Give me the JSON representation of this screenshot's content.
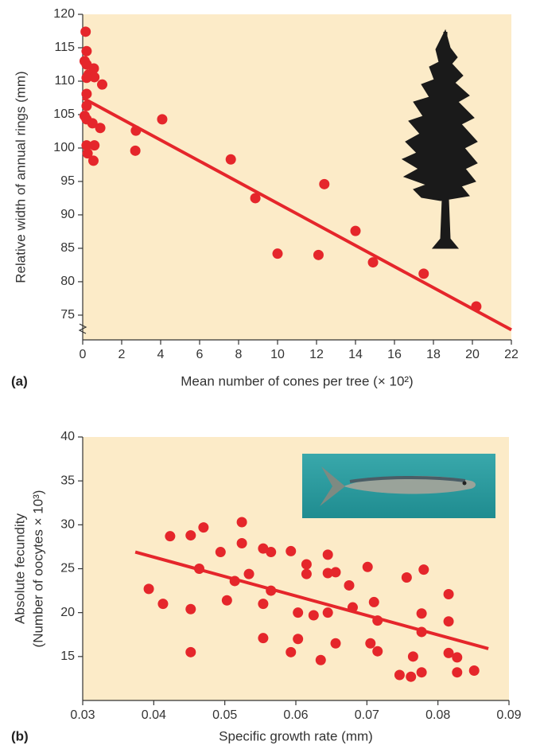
{
  "chart_data": [
    {
      "type": "scatter",
      "panel_label": "(a)",
      "xlabel": "Mean number of cones per tree (× 10²)",
      "ylabel": [
        "Relative width of annual rings (mm)"
      ],
      "background": "#fcebc8",
      "xlim": [
        0,
        22
      ],
      "ylim": [
        71.3,
        120
      ],
      "xticks": [
        0,
        2,
        4,
        6,
        8,
        10,
        12,
        14,
        16,
        18,
        20,
        22
      ],
      "yticks": [
        75,
        80,
        85,
        90,
        95,
        100,
        105,
        110,
        115,
        120
      ],
      "series": [
        {
          "color": "#e5262b",
          "x": [
            0.15,
            0.2,
            0.1,
            0.2,
            0.57,
            0.3,
            0.6,
            0.2,
            1.0,
            0.2,
            0.2,
            0.1,
            0.2,
            0.5,
            0.9,
            2.73,
            4.08,
            0.2,
            0.6,
            0.25,
            2.7,
            0.55,
            7.6,
            8.86,
            10.0,
            12.1,
            12.4,
            14.0,
            14.9,
            17.5,
            20.2
          ],
          "y": [
            117.4,
            114.5,
            113.0,
            112.5,
            111.9,
            111.0,
            110.6,
            110.5,
            109.5,
            108.1,
            106.3,
            104.8,
            104.3,
            103.7,
            103.0,
            102.6,
            104.3,
            100.4,
            100.4,
            99.2,
            99.6,
            98.1,
            98.3,
            92.5,
            84.2,
            84.0,
            94.6,
            87.6,
            82.9,
            81.2,
            76.3
          ]
        }
      ],
      "trendline": {
        "color": "#e5262b",
        "x": [
          0,
          22
        ],
        "y": [
          107.5,
          72.8
        ]
      }
    },
    {
      "type": "scatter",
      "panel_label": "(b)",
      "xlabel": "Specific growth rate (mm)",
      "ylabel": [
        "Absolute fecundity",
        "(Number of oocytes × 10³)"
      ],
      "background": "#fcebc8",
      "xlim": [
        0.03,
        0.09
      ],
      "ylim": [
        10,
        40
      ],
      "xticks": [
        0.03,
        0.04,
        0.05,
        0.06,
        0.07,
        0.08,
        0.09
      ],
      "yticks": [
        15,
        20,
        25,
        30,
        35,
        40
      ],
      "series": [
        {
          "color": "#e5262b",
          "x": [
            0.0393,
            0.0413,
            0.0423,
            0.0452,
            0.047,
            0.0464,
            0.0452,
            0.0452,
            0.0494,
            0.0503,
            0.0514,
            0.0524,
            0.0524,
            0.0534,
            0.0554,
            0.0554,
            0.0554,
            0.0565,
            0.0565,
            0.0593,
            0.0593,
            0.0603,
            0.0603,
            0.0615,
            0.0615,
            0.0625,
            0.0635,
            0.0645,
            0.0645,
            0.0645,
            0.0656,
            0.0656,
            0.0675,
            0.068,
            0.0701,
            0.0705,
            0.071,
            0.0715,
            0.0715,
            0.0746,
            0.0756,
            0.0762,
            0.0765,
            0.078,
            0.0777,
            0.0777,
            0.0777,
            0.0815,
            0.0815,
            0.0815,
            0.0827,
            0.0827,
            0.0851
          ],
          "y": [
            22.7,
            21.0,
            28.7,
            28.8,
            29.7,
            25.0,
            20.4,
            15.5,
            26.9,
            21.4,
            23.6,
            27.9,
            30.3,
            24.4,
            27.3,
            21.0,
            17.1,
            26.9,
            22.5,
            27.0,
            15.5,
            20.0,
            17.0,
            25.5,
            24.4,
            19.7,
            14.6,
            26.6,
            24.5,
            20.0,
            24.6,
            16.5,
            23.1,
            20.6,
            25.2,
            16.5,
            21.2,
            19.1,
            15.6,
            12.9,
            24.0,
            12.7,
            15.0,
            24.9,
            19.9,
            17.8,
            13.2,
            22.1,
            19.0,
            15.4,
            14.9,
            13.2,
            13.4
          ]
        }
      ],
      "trendline": {
        "color": "#e5262b",
        "x": [
          0.0374,
          0.0871
        ],
        "y": [
          26.9,
          15.9
        ]
      }
    }
  ]
}
